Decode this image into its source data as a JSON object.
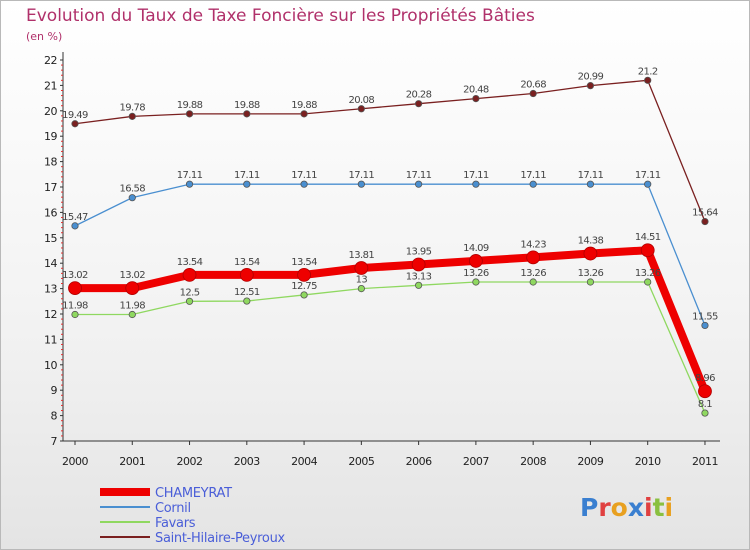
{
  "chart_data": {
    "type": "line",
    "title": "Evolution du Taux de Taxe Foncière sur les Propriétés Bâties",
    "unit_label": "(en %)",
    "categories": [
      "2000",
      "2001",
      "2002",
      "2003",
      "2004",
      "2005",
      "2006",
      "2007",
      "2008",
      "2009",
      "2010",
      "2011"
    ],
    "ylim": [
      7,
      22
    ],
    "yticks": [
      7,
      8,
      9,
      10,
      11,
      12,
      13,
      14,
      15,
      16,
      17,
      18,
      19,
      20,
      21,
      22
    ],
    "grid": "none",
    "series": [
      {
        "name": "Saint-Hilaire-Peyroux",
        "color": "#7a2020",
        "values": [
          19.49,
          19.78,
          19.88,
          19.88,
          19.88,
          20.08,
          20.28,
          20.48,
          20.68,
          20.99,
          21.2,
          15.64
        ],
        "labels": [
          "19.49",
          "19.78",
          "19.88",
          "19.88",
          "19.88",
          "20.08",
          "20.28",
          "20.48",
          "20.68",
          "20.99",
          "21.2",
          "15.64"
        ]
      },
      {
        "name": "Cornil",
        "color": "#4a8fd0",
        "values": [
          15.47,
          16.58,
          17.11,
          17.11,
          17.11,
          17.11,
          17.11,
          17.11,
          17.11,
          17.11,
          17.11,
          11.55
        ],
        "labels": [
          "15.47",
          "16.58",
          "17.11",
          "17.11",
          "17.11",
          "17.11",
          "17.11",
          "17.11",
          "17.11",
          "17.11",
          "17.11",
          "11.55"
        ]
      },
      {
        "name": "Favars",
        "color": "#8fd860",
        "values": [
          11.98,
          11.98,
          12.5,
          12.51,
          12.75,
          13,
          13.13,
          13.26,
          13.26,
          13.26,
          13.26,
          8.1
        ],
        "labels": [
          "11.98",
          "11.98",
          "12.5",
          "12.51",
          "12.75",
          "13",
          "13.13",
          "13.26",
          "13.26",
          "13.26",
          "13.26",
          "8.1"
        ]
      },
      {
        "name": "CHAMEYRAT",
        "color": "#ee0000",
        "values": [
          13.02,
          13.02,
          13.54,
          13.54,
          13.54,
          13.81,
          13.95,
          14.09,
          14.23,
          14.38,
          14.51,
          8.96
        ],
        "labels": [
          "13.02",
          "13.02",
          "13.54",
          "13.54",
          "13.54",
          "13.81",
          "13.95",
          "14.09",
          "14.23",
          "14.38",
          "14.51",
          "8.96"
        ]
      }
    ],
    "legend": [
      "CHAMEYRAT",
      "Cornil",
      "Favars",
      "Saint-Hilaire-Peyroux"
    ],
    "legend_position": "bottom-left"
  },
  "logo": {
    "letters": [
      "P",
      "r",
      "o",
      "x",
      "i",
      "t",
      "i"
    ],
    "colors": [
      "#3a7fd0",
      "#e04040",
      "#e8a020",
      "#3a7fd0",
      "#e04040",
      "#8ac040",
      "#e8a020"
    ]
  }
}
